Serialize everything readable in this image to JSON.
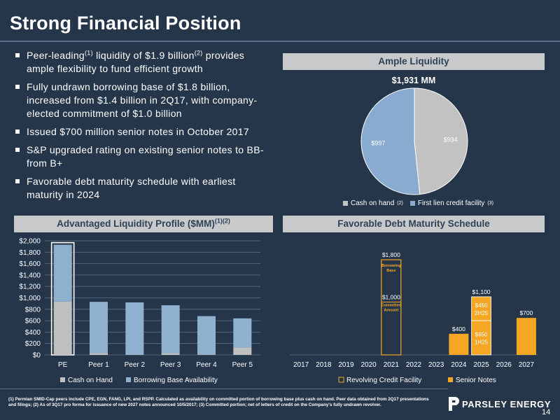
{
  "title": "Strong Financial Position",
  "bullets": [
    {
      "pre": "Peer-leading",
      "sup1": "(1)",
      "mid": " liquidity of $1.9 billion",
      "sup2": "(2)",
      "post": " provides ample flexibility to fund efficient growth"
    },
    {
      "text": "Fully undrawn borrowing base of $1.8 billion, increased from $1.4 billion in 2Q17, with company-elected commitment of $1.0 billion"
    },
    {
      "text": "Issued $700 million senior notes in October 2017"
    },
    {
      "text": "S&P upgraded rating on existing senior notes to BB- from B+"
    },
    {
      "text": "Favorable debt maturity schedule with earliest maturity in 2024"
    }
  ],
  "panels": {
    "ample_liquidity": "Ample Liquidity",
    "liquidity_profile": "Advantaged Liquidity Profile ($MM)",
    "liquidity_profile_sup": "(1)(2)",
    "debt_maturity": "Favorable Debt Maturity Schedule"
  },
  "colors": {
    "background": "#25364a",
    "panel_header": "#c7c9cb",
    "cash": "#c0c0c0",
    "borrowing": "#8fb0cf",
    "senior_notes": "#f5a623",
    "pie_cash": "#c2c2c2",
    "pie_lien": "#89abcf"
  },
  "chart_data": [
    {
      "type": "pie",
      "title": "$1,931 MM",
      "slices": [
        {
          "label": "Cash on hand",
          "value": 934,
          "display": "$934",
          "note": "(2)"
        },
        {
          "label": "First lien credit facility",
          "value": 997,
          "display": "$997",
          "note": "(3)"
        }
      ]
    },
    {
      "type": "bar",
      "stacked": true,
      "categories": [
        "PE",
        "Peer 1",
        "Peer 2",
        "Peer 3",
        "Peer 4",
        "Peer 5"
      ],
      "series": [
        {
          "name": "Cash on Hand",
          "values": [
            934,
            30,
            10,
            30,
            10,
            130
          ]
        },
        {
          "name": "Borrowing Base Availability",
          "values": [
            997,
            900,
            910,
            840,
            670,
            510
          ]
        }
      ],
      "ylim": [
        0,
        2000
      ],
      "yticks": [
        "$0",
        "$200",
        "$400",
        "$600",
        "$800",
        "$1,000",
        "$1,200",
        "$1,400",
        "$1,600",
        "$1,800",
        "$2,000"
      ],
      "highlight": "PE"
    },
    {
      "type": "bar",
      "categories": [
        "2017",
        "2018",
        "2019",
        "2020",
        "2021",
        "2022",
        "2023",
        "2024",
        "2025",
        "2026",
        "2027"
      ],
      "series": [
        {
          "name": "Revolving Credit Facility",
          "values": [
            0,
            0,
            0,
            0,
            1800,
            0,
            0,
            0,
            0,
            0,
            0
          ]
        },
        {
          "name": "Senior Notes",
          "values": [
            0,
            0,
            0,
            0,
            0,
            0,
            0,
            400,
            1100,
            0,
            700
          ]
        }
      ],
      "revolver": {
        "year": "2021",
        "total_label": "$1,800",
        "total_note": "Borrowing Base",
        "committed": 1000,
        "committed_label": "$1,000",
        "committed_note": "Committed Amount"
      },
      "notes_labels": [
        {
          "year": "2024",
          "label": "$400"
        },
        {
          "year": "2025",
          "label": "$1,100",
          "segments": [
            {
              "value": 650,
              "amount": "$650",
              "tranche": "1H25"
            },
            {
              "value": 450,
              "amount": "$450",
              "tranche": "2H25"
            }
          ]
        },
        {
          "year": "2027",
          "label": "$700"
        }
      ],
      "ylim": [
        0,
        2000
      ]
    }
  ],
  "footnote": "(1) Permian SMID-Cap peers include CPE, EGN, FANG, LPI, and RSPP. Calculated as availability on committed portion of borrowing base plus cash on hand. Peer data obtained from 2Q17 presentations and filings; (2) As of 3Q17 pro forma for issuance of new 2027 notes announced 10/5/2017; (3) Committed portion; net of letters of credit on the Company's fully undrawn revolver.",
  "logo": "PARSLEY ENERGY",
  "page_number": "14"
}
